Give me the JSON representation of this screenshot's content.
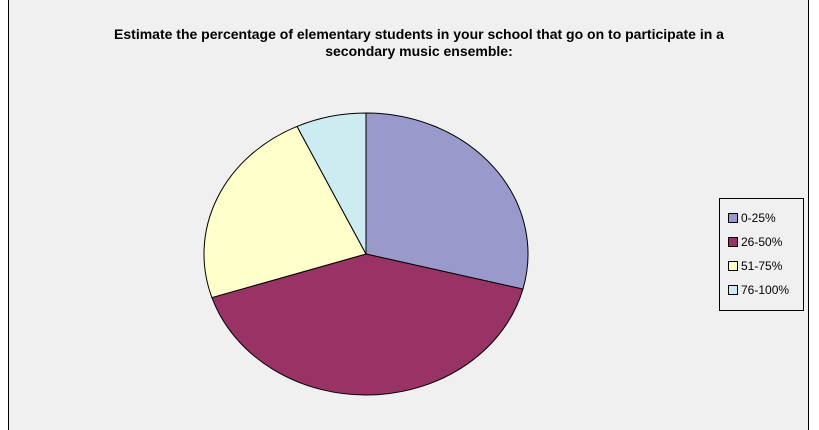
{
  "chart_data": {
    "type": "pie",
    "title": "Estimate the percentage of elementary students in your school that go on to participate in a secondary music ensemble:",
    "categories": [
      "0-25%",
      "26-50%",
      "51-75%",
      "76-100%"
    ],
    "values": [
      29,
      41,
      23,
      7
    ],
    "colors": [
      "#9999cc",
      "#993366",
      "#ffffcc",
      "#ccecf2"
    ],
    "legend_position": "right",
    "start": "top",
    "direction": "clockwise"
  }
}
